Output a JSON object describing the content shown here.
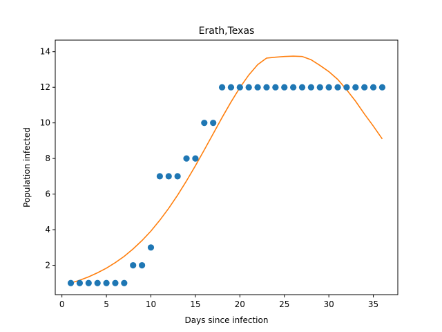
{
  "chart_data": {
    "type": "scatter",
    "title": "Erath,Texas",
    "xlabel": "Days since infection",
    "ylabel": "Population infected",
    "xlim": [
      -0.75,
      37.75
    ],
    "ylim": [
      0.35,
      14.65
    ],
    "xticks": [
      0,
      5,
      10,
      15,
      20,
      25,
      30,
      35
    ],
    "yticks": [
      2,
      4,
      6,
      8,
      10,
      12,
      14
    ],
    "grid": false,
    "legend": "none",
    "colors": {
      "points": "#1f77b4",
      "fit": "#ff7f0e"
    },
    "series": [
      {
        "type": "scatter",
        "x": [
          1,
          2,
          3,
          4,
          5,
          6,
          7,
          8,
          9,
          10,
          11,
          12,
          13,
          14,
          15,
          16,
          17,
          18,
          19,
          20,
          21,
          22,
          23,
          24,
          25,
          26,
          27,
          28,
          29,
          30,
          31,
          32,
          33,
          34,
          35,
          36
        ],
        "y": [
          1,
          1,
          1,
          1,
          1,
          1,
          1,
          2,
          2,
          3,
          7,
          7,
          7,
          8,
          8,
          10,
          10,
          12,
          12,
          12,
          12,
          12,
          12,
          12,
          12,
          12,
          12,
          12,
          12,
          12,
          12,
          12,
          12,
          12,
          12,
          12
        ]
      },
      {
        "type": "line",
        "x": [
          1,
          2,
          3,
          4,
          5,
          6,
          7,
          8,
          9,
          10,
          11,
          12,
          13,
          14,
          15,
          16,
          17,
          18,
          19,
          20,
          21,
          22,
          23,
          24,
          25,
          26,
          27,
          28,
          29,
          30,
          31,
          32,
          33,
          34,
          35,
          36
        ],
        "y": [
          1.0,
          1.16,
          1.35,
          1.58,
          1.84,
          2.15,
          2.5,
          2.92,
          3.39,
          3.92,
          4.53,
          5.2,
          5.94,
          6.74,
          7.59,
          8.48,
          9.39,
          10.3,
          11.17,
          11.98,
          12.69,
          13.27,
          13.64,
          13.69,
          13.73,
          13.75,
          13.73,
          13.55,
          13.23,
          12.88,
          12.44,
          11.86,
          11.22,
          10.5,
          9.82,
          9.1
        ]
      }
    ]
  }
}
